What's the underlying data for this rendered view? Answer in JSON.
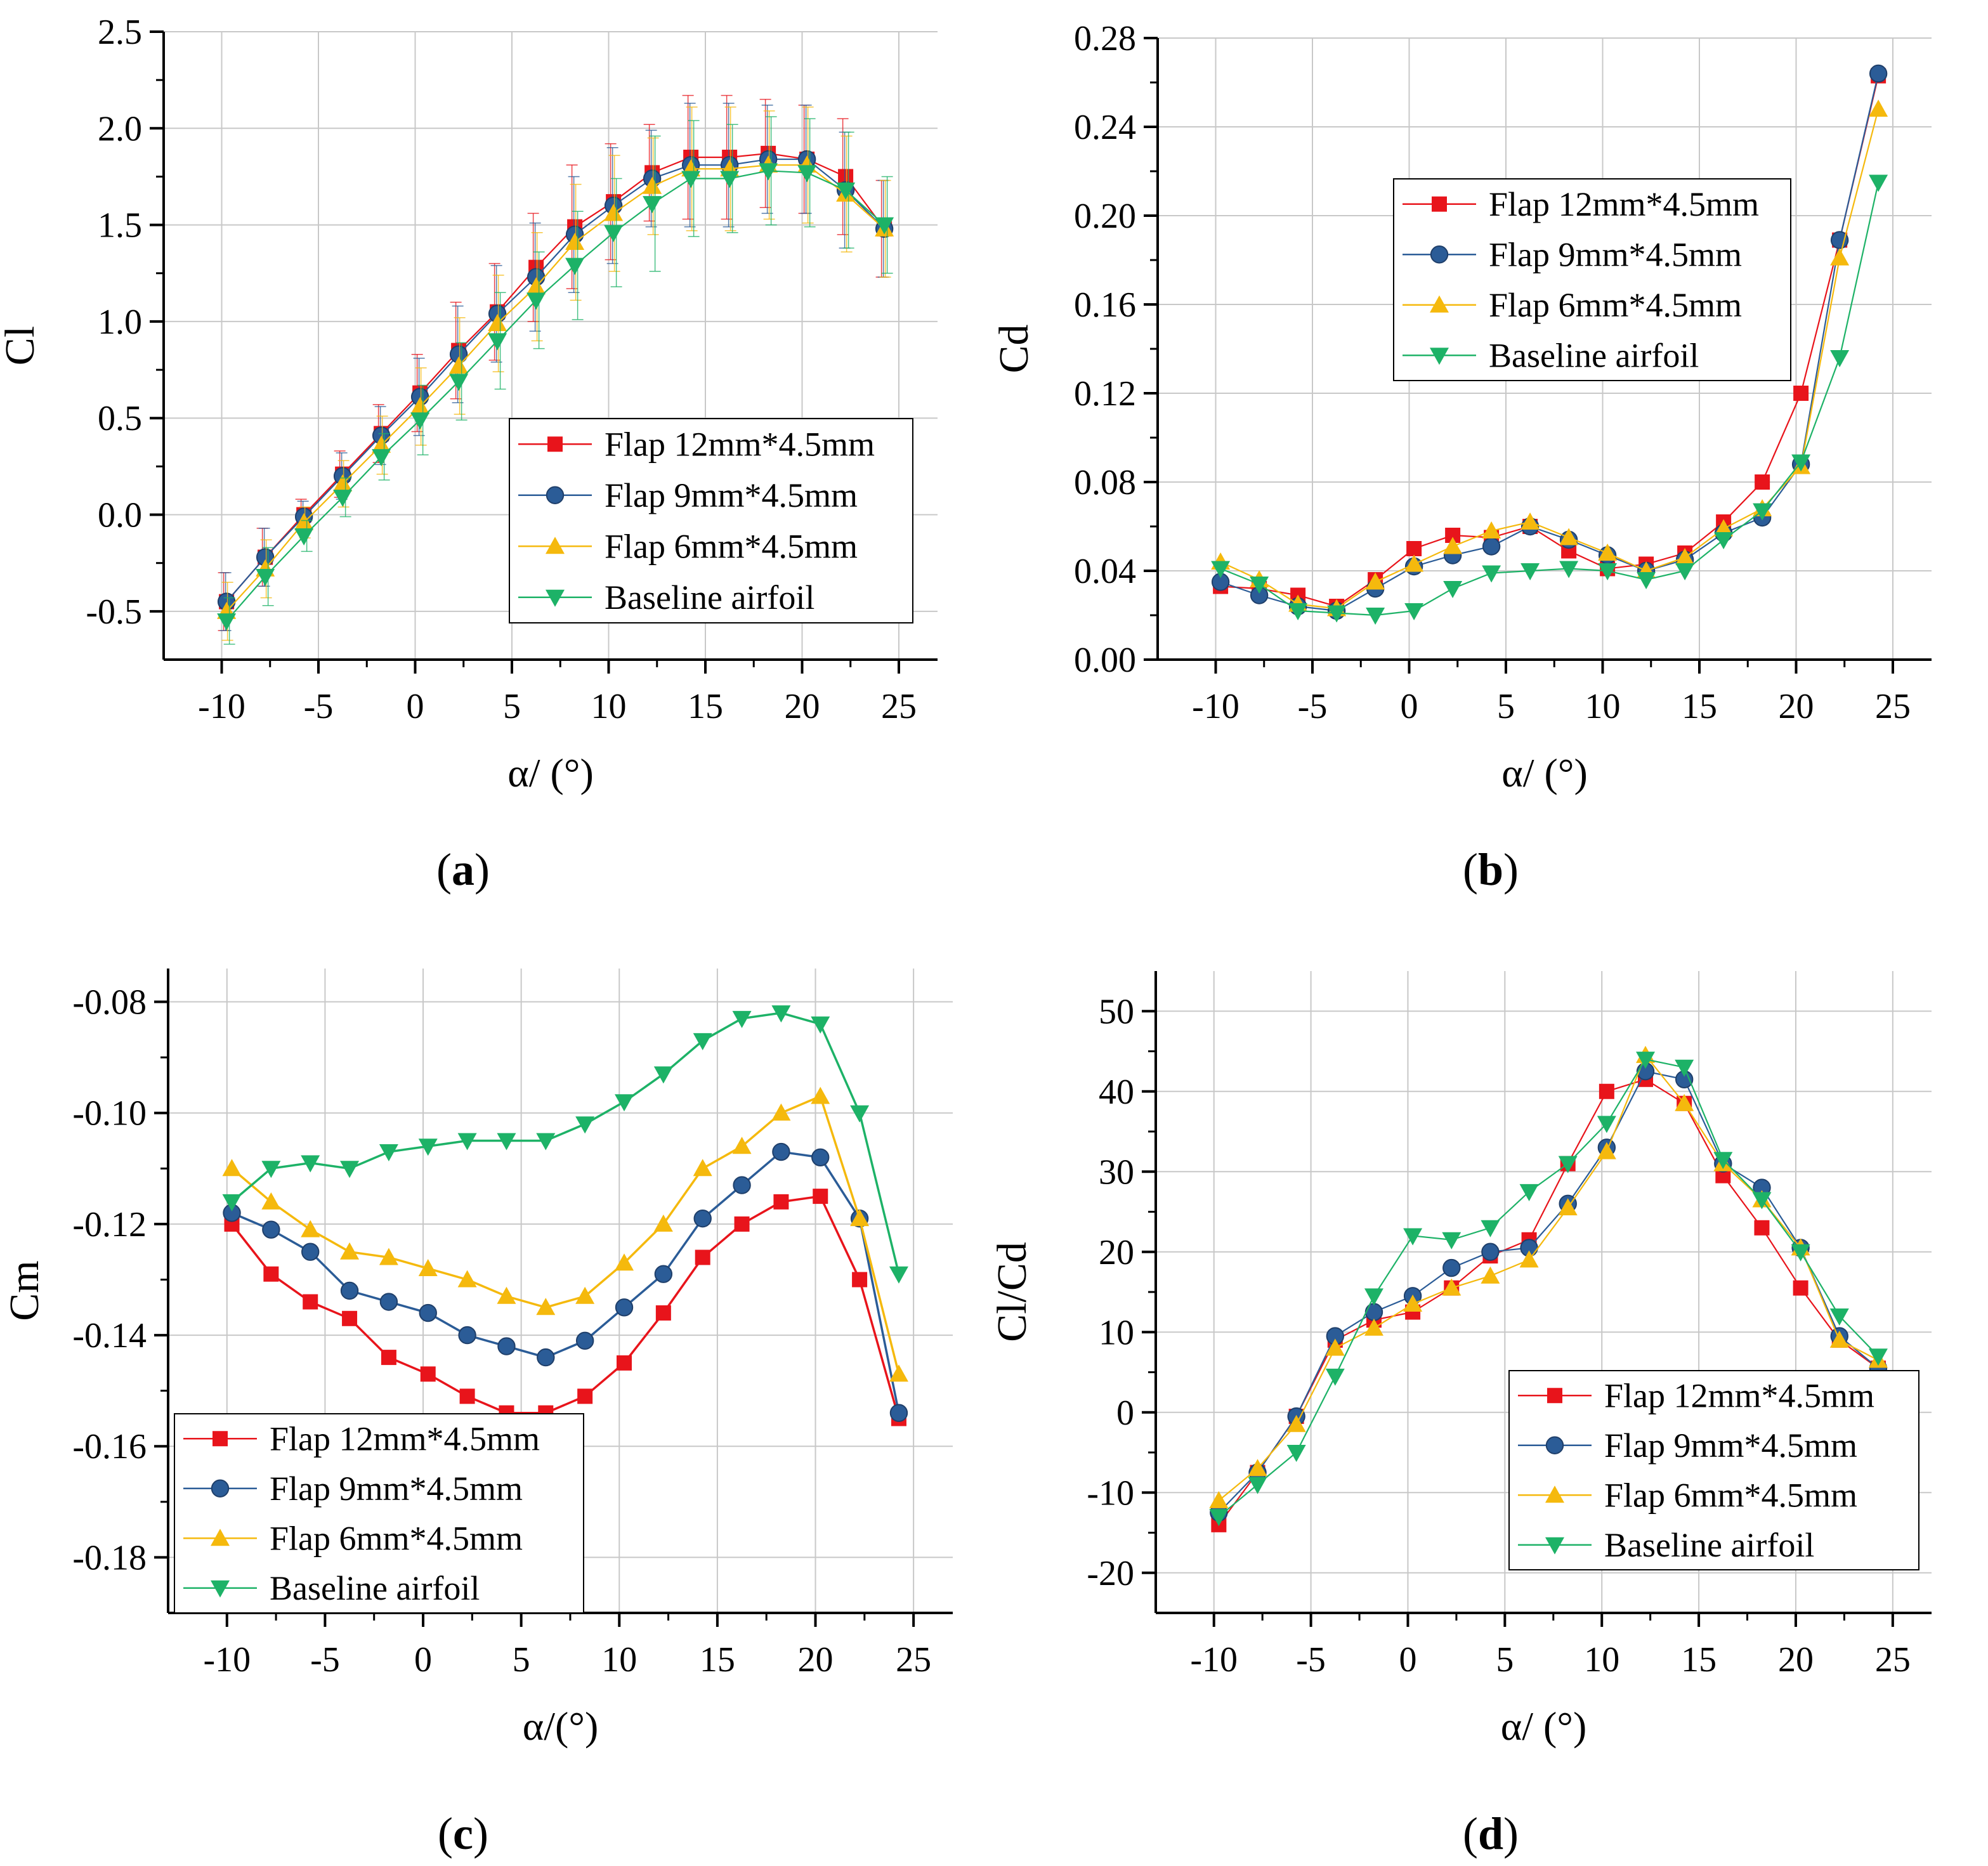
{
  "captions": [
    "a",
    "b",
    "c",
    "d"
  ],
  "colors": {
    "flap12": "#e8141b",
    "flap9": "#2b5c97",
    "flap6": "#f5b90d",
    "baseline": "#1db267"
  },
  "chart_data": [
    {
      "id": "a",
      "type": "line",
      "xlabel": "α/ (°)",
      "ylabel": "Cl",
      "xlim": [
        -13,
        27
      ],
      "ylim": [
        -0.75,
        2.5
      ],
      "xticks": [
        -10,
        -5,
        0,
        5,
        10,
        15,
        20,
        25
      ],
      "yticks": [
        -0.5,
        0.0,
        0.5,
        1.0,
        1.5,
        2.0,
        2.5
      ],
      "ytick_decimals": 1,
      "grid": true,
      "error_bars": true,
      "legend": "bottom-right",
      "x": [
        -9.75,
        -7.75,
        -5.75,
        -3.75,
        -1.75,
        0.25,
        2.25,
        4.25,
        6.25,
        8.25,
        10.25,
        12.25,
        14.25,
        16.25,
        18.25,
        20.25,
        22.25,
        24.25
      ],
      "series": [
        {
          "name": "Flap 12mm*4.5mm",
          "color_key": "flap12",
          "marker": "square",
          "values": [
            -0.45,
            -0.22,
            0.0,
            0.21,
            0.42,
            0.63,
            0.85,
            1.05,
            1.28,
            1.49,
            1.62,
            1.77,
            1.85,
            1.85,
            1.87,
            1.84,
            1.75,
            1.48
          ],
          "errors": [
            0.15,
            0.15,
            0.08,
            0.12,
            0.15,
            0.2,
            0.25,
            0.25,
            0.28,
            0.32,
            0.3,
            0.25,
            0.32,
            0.32,
            0.28,
            0.28,
            0.3,
            0.25
          ]
        },
        {
          "name": "Flap  9mm*4.5mm",
          "color_key": "flap9",
          "marker": "circle",
          "values": [
            -0.45,
            -0.22,
            -0.01,
            0.2,
            0.41,
            0.61,
            0.83,
            1.04,
            1.23,
            1.45,
            1.6,
            1.74,
            1.81,
            1.81,
            1.84,
            1.84,
            1.68,
            1.48
          ],
          "errors": [
            0.15,
            0.15,
            0.08,
            0.12,
            0.15,
            0.2,
            0.25,
            0.25,
            0.28,
            0.3,
            0.3,
            0.25,
            0.32,
            0.32,
            0.28,
            0.28,
            0.3,
            0.25
          ]
        },
        {
          "name": "Flap  6mm*4.5mm",
          "color_key": "flap6",
          "marker": "triangle-up",
          "values": [
            -0.5,
            -0.28,
            -0.04,
            0.16,
            0.36,
            0.56,
            0.77,
            0.99,
            1.18,
            1.41,
            1.56,
            1.7,
            1.79,
            1.79,
            1.81,
            1.81,
            1.66,
            1.48
          ],
          "errors": [
            0.15,
            0.15,
            0.08,
            0.12,
            0.15,
            0.2,
            0.25,
            0.25,
            0.28,
            0.3,
            0.3,
            0.25,
            0.32,
            0.32,
            0.28,
            0.3,
            0.3,
            0.25
          ]
        },
        {
          "name": "Baseline airfoil",
          "color_key": "baseline",
          "marker": "triangle-down",
          "values": [
            -0.55,
            -0.32,
            -0.11,
            0.09,
            0.3,
            0.49,
            0.69,
            0.9,
            1.11,
            1.29,
            1.46,
            1.61,
            1.74,
            1.74,
            1.78,
            1.77,
            1.68,
            1.5
          ],
          "errors": [
            0.12,
            0.15,
            0.08,
            0.1,
            0.12,
            0.18,
            0.2,
            0.25,
            0.25,
            0.28,
            0.28,
            0.35,
            0.3,
            0.28,
            0.28,
            0.28,
            0.3,
            0.25
          ]
        }
      ]
    },
    {
      "id": "b",
      "type": "line",
      "xlabel": "α/ (°)",
      "ylabel": "Cd",
      "xlim": [
        -13,
        27
      ],
      "ylim": [
        0.0,
        0.28
      ],
      "xticks": [
        -10,
        -5,
        0,
        5,
        10,
        15,
        20,
        25
      ],
      "yticks": [
        0.0,
        0.04,
        0.08,
        0.12,
        0.16,
        0.2,
        0.24,
        0.28
      ],
      "ytick_decimals": 2,
      "grid": true,
      "error_bars": false,
      "legend": "top-center",
      "x": [
        -9.75,
        -7.75,
        -5.75,
        -3.75,
        -1.75,
        0.25,
        2.25,
        4.25,
        6.25,
        8.25,
        10.25,
        12.25,
        14.25,
        16.25,
        18.25,
        20.25,
        22.25,
        24.25
      ],
      "series": [
        {
          "name": "Flap 12mm*4.5mm",
          "color_key": "flap12",
          "marker": "square",
          "values": [
            0.033,
            0.032,
            0.029,
            0.024,
            0.036,
            0.05,
            0.056,
            0.055,
            0.06,
            0.049,
            0.041,
            0.043,
            0.048,
            0.062,
            0.08,
            0.12,
            0.189,
            0.263
          ]
        },
        {
          "name": "Flap  9mm*4.5mm",
          "color_key": "flap9",
          "marker": "circle",
          "values": [
            0.035,
            0.029,
            0.024,
            0.022,
            0.032,
            0.042,
            0.047,
            0.051,
            0.06,
            0.054,
            0.047,
            0.04,
            0.045,
            0.057,
            0.064,
            0.088,
            0.189,
            0.264
          ]
        },
        {
          "name": "Flap  6mm*4.5mm",
          "color_key": "flap6",
          "marker": "triangle-up",
          "values": [
            0.044,
            0.036,
            0.025,
            0.023,
            0.035,
            0.043,
            0.051,
            0.058,
            0.062,
            0.055,
            0.048,
            0.04,
            0.046,
            0.059,
            0.068,
            0.087,
            0.181,
            0.248
          ]
        },
        {
          "name": "Baseline airfoil",
          "color_key": "baseline",
          "marker": "triangle-down",
          "values": [
            0.041,
            0.034,
            0.022,
            0.021,
            0.02,
            0.022,
            0.032,
            0.039,
            0.04,
            0.041,
            0.04,
            0.036,
            0.04,
            0.054,
            0.067,
            0.089,
            0.136,
            0.215
          ]
        }
      ]
    },
    {
      "id": "c",
      "type": "line",
      "xlabel": "α/(°)",
      "ylabel": "Cm",
      "xlim": [
        -13,
        27
      ],
      "ylim": [
        -0.19,
        -0.074
      ],
      "xticks": [
        -10,
        -5,
        0,
        5,
        10,
        15,
        20,
        25
      ],
      "yticks": [
        -0.18,
        -0.16,
        -0.14,
        -0.12,
        -0.1,
        -0.08
      ],
      "ytick_decimals": 2,
      "grid": true,
      "error_bars": false,
      "legend": "bottom-left",
      "x": [
        -9.75,
        -7.75,
        -5.75,
        -3.75,
        -1.75,
        0.25,
        2.25,
        4.25,
        6.25,
        8.25,
        10.25,
        12.25,
        14.25,
        16.25,
        18.25,
        20.25,
        22.25,
        24.25
      ],
      "series": [
        {
          "name": "Flap 12mm*4.5mm",
          "color_key": "flap12",
          "marker": "square",
          "values": [
            -0.12,
            -0.129,
            -0.134,
            -0.137,
            -0.144,
            -0.147,
            -0.151,
            -0.154,
            -0.154,
            -0.151,
            -0.145,
            -0.136,
            -0.126,
            -0.12,
            -0.116,
            -0.115,
            -0.13,
            -0.155
          ]
        },
        {
          "name": "Flap  9mm*4.5mm",
          "color_key": "flap9",
          "marker": "circle",
          "values": [
            -0.118,
            -0.121,
            -0.125,
            -0.132,
            -0.134,
            -0.136,
            -0.14,
            -0.142,
            -0.144,
            -0.141,
            -0.135,
            -0.129,
            -0.119,
            -0.113,
            -0.107,
            -0.108,
            -0.119,
            -0.154
          ]
        },
        {
          "name": "Flap  6mm*4.5mm",
          "color_key": "flap6",
          "marker": "triangle-up",
          "values": [
            -0.11,
            -0.116,
            -0.121,
            -0.125,
            -0.126,
            -0.128,
            -0.13,
            -0.133,
            -0.135,
            -0.133,
            -0.127,
            -0.12,
            -0.11,
            -0.106,
            -0.1,
            -0.097,
            -0.119,
            -0.147
          ]
        },
        {
          "name": "Baseline airfoil",
          "color_key": "baseline",
          "marker": "triangle-down",
          "values": [
            -0.116,
            -0.11,
            -0.109,
            -0.11,
            -0.107,
            -0.106,
            -0.105,
            -0.105,
            -0.105,
            -0.102,
            -0.098,
            -0.093,
            -0.087,
            -0.083,
            -0.082,
            -0.084,
            -0.1,
            -0.129
          ]
        }
      ]
    },
    {
      "id": "d",
      "type": "line",
      "xlabel": "α/ (°)",
      "ylabel": "Cl/Cd",
      "xlim": [
        -13,
        27
      ],
      "ylim": [
        -25,
        55
      ],
      "xticks": [
        -10,
        -5,
        0,
        5,
        10,
        15,
        20,
        25
      ],
      "yticks": [
        -20,
        -10,
        0,
        10,
        20,
        30,
        40,
        50
      ],
      "ytick_decimals": 0,
      "grid": true,
      "error_bars": false,
      "legend": "bottom-right",
      "x": [
        -9.75,
        -7.75,
        -5.75,
        -3.75,
        -1.75,
        0.25,
        2.25,
        4.25,
        6.25,
        8.25,
        10.25,
        12.25,
        14.25,
        16.25,
        18.25,
        20.25,
        22.25,
        24.25
      ],
      "series": [
        {
          "name": "Flap 12mm*4.5mm",
          "color_key": "flap12",
          "marker": "square",
          "values": [
            -14,
            -7.5,
            -0.5,
            9,
            11.5,
            12.5,
            15.5,
            19.5,
            21.5,
            31,
            40,
            41.5,
            38.5,
            29.5,
            23,
            15.5,
            9,
            5.5
          ]
        },
        {
          "name": "Flap  9mm*4.5mm",
          "color_key": "flap9",
          "marker": "circle",
          "values": [
            -12.5,
            -7.5,
            -0.5,
            9.5,
            12.5,
            14.5,
            18,
            20,
            20.5,
            26,
            33,
            42.5,
            41.5,
            31,
            28,
            20.5,
            9.5,
            5.5
          ]
        },
        {
          "name": "Flap  6mm*4.5mm",
          "color_key": "flap6",
          "marker": "triangle-up",
          "values": [
            -11,
            -7,
            -1.5,
            8,
            10.5,
            13.5,
            15.5,
            17,
            19,
            25.5,
            32.5,
            44.5,
            38.5,
            31,
            26.5,
            20.5,
            9,
            6.5
          ]
        },
        {
          "name": "Baseline airfoil",
          "color_key": "baseline",
          "marker": "triangle-down",
          "values": [
            -13,
            -9,
            -5,
            4.5,
            14.5,
            22,
            21.5,
            23,
            27.5,
            31,
            36,
            44,
            43,
            31.5,
            26.5,
            20,
            12,
            7
          ]
        }
      ]
    }
  ]
}
